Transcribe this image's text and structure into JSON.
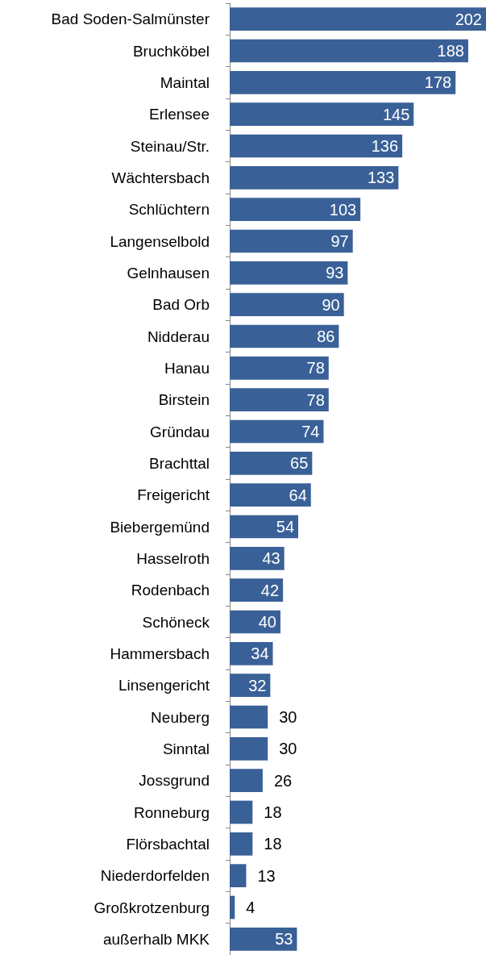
{
  "chart_data": {
    "type": "bar",
    "orientation": "horizontal",
    "data_labels": true,
    "color": "#3a6197",
    "categories": [
      "Bad Soden-Salmünster",
      "Bruchköbel",
      "Maintal",
      "Erlensee",
      "Steinau/Str.",
      "Wächtersbach",
      "Schlüchtern",
      "Langenselbold",
      "Gelnhausen",
      "Bad Orb",
      "Nidderau",
      "Hanau",
      "Birstein",
      "Gründau",
      "Brachttal",
      "Freigericht",
      "Biebergemünd",
      "Hasselroth",
      "Rodenbach",
      "Schöneck",
      "Hammersbach",
      "Linsengericht",
      "Neuberg",
      "Sinntal",
      "Jossgrund",
      "Ronneburg",
      "Flörsbachtal",
      "Niederdorfelden",
      "Großkrotzenburg",
      "außerhalb MKK"
    ],
    "values": [
      202,
      188,
      178,
      145,
      136,
      133,
      103,
      97,
      93,
      90,
      86,
      78,
      78,
      74,
      65,
      64,
      54,
      43,
      42,
      40,
      34,
      32,
      30,
      30,
      26,
      18,
      18,
      13,
      4,
      53
    ]
  }
}
